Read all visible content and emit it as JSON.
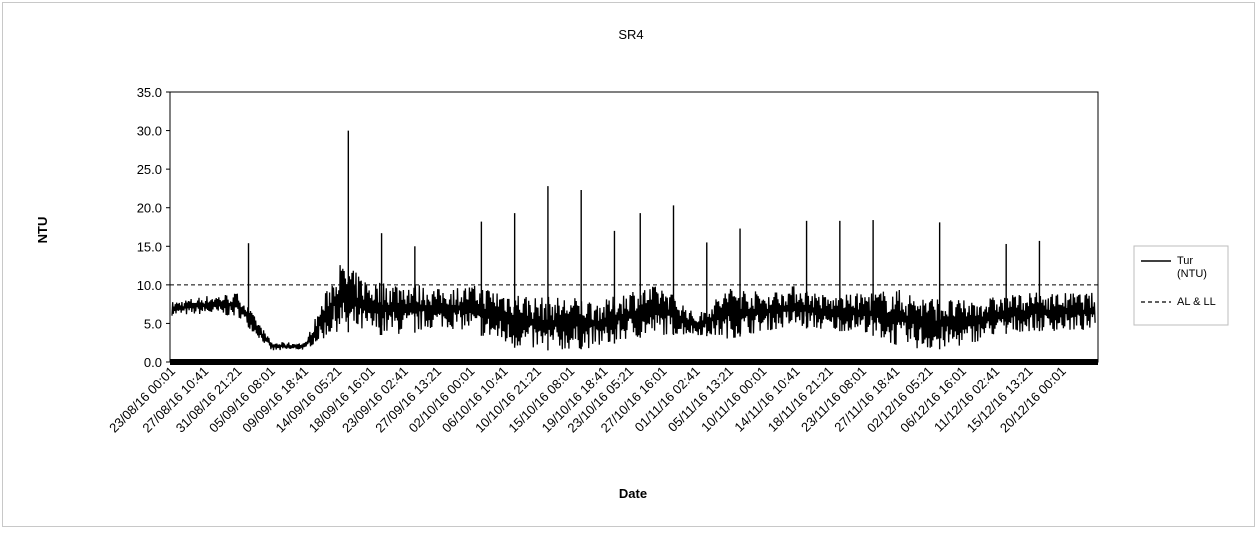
{
  "chart_data": {
    "type": "line",
    "title": "SR4",
    "xlabel": "Date",
    "ylabel": "NTU",
    "ylim": [
      0,
      35
    ],
    "yticks": [
      "0.0",
      "5.0",
      "10.0",
      "15.0",
      "20.0",
      "25.0",
      "30.0",
      "35.0"
    ],
    "x_tick_labels": [
      "23/08/16 00:01",
      "27/08/16 10:41",
      "31/08/16 21:21",
      "05/09/16 08:01",
      "09/09/16 18:41",
      "14/09/16 05:21",
      "18/09/16 16:01",
      "23/09/16 02:41",
      "27/09/16 13:21",
      "02/10/16 00:01",
      "06/10/16 10:41",
      "10/10/16 21:21",
      "15/10/16 08:01",
      "19/10/16 18:41",
      "23/10/16 05:21",
      "27/10/16 16:01",
      "01/11/16 02:41",
      "05/11/16 13:21",
      "10/11/16 00:01",
      "14/11/16 10:41",
      "18/11/16 21:21",
      "23/11/16 08:01",
      "27/11/16 18:41",
      "02/12/16 05:21",
      "06/12/16 16:01",
      "11/12/16 02:41",
      "15/12/16 13:21",
      "20/12/16 00:01"
    ],
    "grid": false,
    "legend_position": "right",
    "series": [
      {
        "name": "Tur\n(NTU)",
        "style": "solid",
        "color": "#000000",
        "profile": [
          {
            "x": "23/08/16 00:01",
            "low": 6.0,
            "high": 7.8
          },
          {
            "x": "27/08/16 10:41",
            "low": 6.2,
            "high": 8.6
          },
          {
            "x": "31/08/16 21:21",
            "low": 5.8,
            "high": 9.0
          },
          {
            "x": "05/09/16 08:01",
            "low": 1.4,
            "high": 2.6
          },
          {
            "x": "09/09/16 18:41",
            "low": 1.6,
            "high": 2.5
          },
          {
            "x": "14/09/16 05:21",
            "low": 4.0,
            "high": 13.0
          },
          {
            "x": "18/09/16 16:01",
            "low": 3.5,
            "high": 10.5
          },
          {
            "x": "23/09/16 02:41",
            "low": 3.5,
            "high": 10.5
          },
          {
            "x": "27/09/16 13:21",
            "low": 4.5,
            "high": 9.5
          },
          {
            "x": "02/10/16 00:01",
            "low": 4.0,
            "high": 10.0
          },
          {
            "x": "06/10/16 10:41",
            "low": 2.0,
            "high": 9.5
          },
          {
            "x": "10/10/16 21:21",
            "low": 1.5,
            "high": 8.5
          },
          {
            "x": "15/10/16 08:01",
            "low": 1.5,
            "high": 8.5
          },
          {
            "x": "19/10/16 18:41",
            "low": 2.0,
            "high": 8.0
          },
          {
            "x": "23/10/16 05:21",
            "low": 3.0,
            "high": 9.5
          },
          {
            "x": "27/10/16 16:01",
            "low": 3.5,
            "high": 10.0
          },
          {
            "x": "01/11/16 02:41",
            "low": 3.5,
            "high": 6.0
          },
          {
            "x": "05/11/16 13:21",
            "low": 3.0,
            "high": 10.0
          },
          {
            "x": "10/11/16 00:01",
            "low": 4.0,
            "high": 9.0
          },
          {
            "x": "14/11/16 10:41",
            "low": 4.5,
            "high": 10.0
          },
          {
            "x": "18/11/16 21:21",
            "low": 4.0,
            "high": 8.5
          },
          {
            "x": "23/11/16 08:01",
            "low": 4.0,
            "high": 9.0
          },
          {
            "x": "27/11/16 18:41",
            "low": 2.0,
            "high": 9.5
          },
          {
            "x": "02/12/16 05:21",
            "low": 1.5,
            "high": 8.5
          },
          {
            "x": "06/12/16 16:01",
            "low": 2.0,
            "high": 8.0
          },
          {
            "x": "11/12/16 02:41",
            "low": 3.5,
            "high": 8.5
          },
          {
            "x": "15/12/16 13:21",
            "low": 4.0,
            "high": 9.0
          },
          {
            "x": "20/12/16 00:01",
            "low": 4.0,
            "high": 9.0
          }
        ],
        "spikes": [
          {
            "x": "31/08/16 21:21",
            "y": 15.4
          },
          {
            "x": "14/09/16 05:21",
            "y": 30.0
          },
          {
            "x": "18/09/16 16:01",
            "y": 16.7
          },
          {
            "x": "23/09/16 02:41",
            "y": 15.0
          },
          {
            "x": "02/10/16 00:01",
            "y": 18.2
          },
          {
            "x": "06/10/16 10:41",
            "y": 19.3
          },
          {
            "x": "10/10/16 21:21",
            "y": 22.8
          },
          {
            "x": "15/10/16 08:01",
            "y": 22.3
          },
          {
            "x": "19/10/16 18:41",
            "y": 17.0
          },
          {
            "x": "23/10/16 05:21",
            "y": 19.3
          },
          {
            "x": "27/10/16 16:01",
            "y": 20.3
          },
          {
            "x": "01/11/16 02:41",
            "y": 15.5
          },
          {
            "x": "05/11/16 13:21",
            "y": 17.3
          },
          {
            "x": "14/11/16 10:41",
            "y": 18.3
          },
          {
            "x": "18/11/16 21:21",
            "y": 18.3
          },
          {
            "x": "23/11/16 08:01",
            "y": 18.4
          },
          {
            "x": "02/12/16 05:21",
            "y": 18.1
          },
          {
            "x": "11/12/16 02:41",
            "y": 15.3
          },
          {
            "x": "15/12/16 13:21",
            "y": 15.7
          }
        ]
      },
      {
        "name": "AL & LL",
        "style": "dashed",
        "color": "#000000",
        "value": 10.0
      }
    ]
  }
}
